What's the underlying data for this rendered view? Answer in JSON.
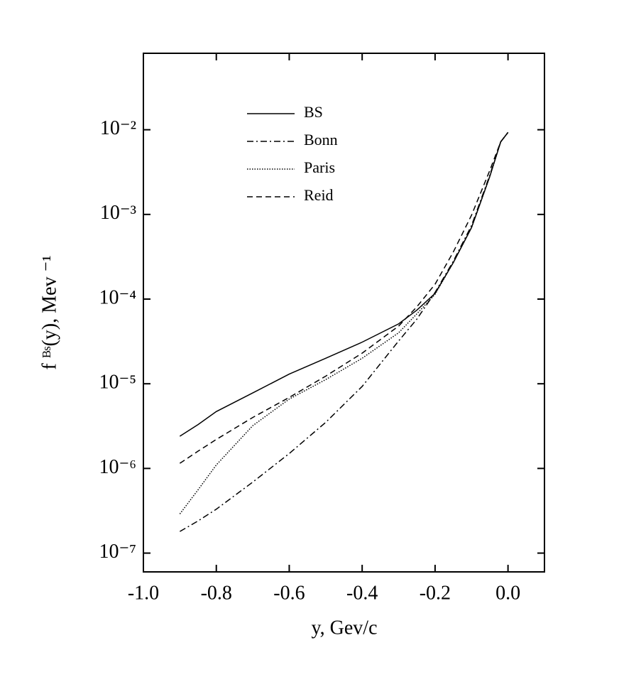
{
  "chart_data": {
    "type": "line",
    "x_label": "y, Gev/c",
    "y_label": "f ᴮˢ(y), Mev ⁻¹",
    "log_y": true,
    "legend": "upper left",
    "xlim": [
      -1.0,
      0.1
    ],
    "ylim": [
      6e-08,
      0.08
    ],
    "xticks": [
      {
        "value": -1.0,
        "label": "-1.0"
      },
      -0.8,
      -0.6,
      -0.4,
      -0.2,
      {
        "value": 0,
        "label": "0.0"
      }
    ],
    "yticks": [
      {
        "value": 1e-07,
        "label": "10⁻⁷"
      },
      {
        "value": 1e-06,
        "label": "10⁻⁶"
      },
      {
        "value": 1e-05,
        "label": "10⁻⁵"
      },
      {
        "value": 0.0001,
        "label": "10⁻⁴"
      },
      {
        "value": 0.001,
        "label": "10⁻³"
      },
      {
        "value": 0.01,
        "label": "10⁻²"
      }
    ],
    "x": [
      -0.9,
      -0.85,
      -0.8,
      -0.7,
      -0.6,
      -0.5,
      -0.4,
      -0.3,
      -0.25,
      -0.2,
      -0.15,
      -0.1,
      -0.05,
      -0.02,
      0
    ],
    "series": [
      {
        "name": "BS",
        "color": "#000000",
        "style": "solid",
        "values": [
          2.4e-06,
          3.3e-06,
          4.7e-06,
          7.8e-06,
          1.3e-05,
          2e-05,
          3.1e-05,
          5.1e-05,
          7.4e-05,
          0.000117,
          0.00027,
          0.0007,
          0.0028,
          0.0072,
          0.0093
        ]
      },
      {
        "name": "Bonn",
        "color": "#000000",
        "style": "dashdot",
        "values": [
          1.8e-07,
          2.4e-07,
          3.3e-07,
          6.9e-07,
          1.5e-06,
          3.5e-06,
          9.3e-06,
          3.2e-05,
          5.8e-05,
          0.00012,
          0.00028,
          0.00074,
          0.0029,
          0.0072,
          0.0093
        ]
      },
      {
        "name": "Paris",
        "color": "#000000",
        "style": "dotted",
        "values": [
          2.9e-07,
          5.6e-07,
          1.1e-06,
          3.2e-06,
          6.6e-06,
          1.12e-05,
          2e-05,
          4e-05,
          6.7e-05,
          0.000114,
          0.00027,
          0.0007,
          0.0028,
          0.0072,
          0.0093
        ]
      },
      {
        "name": "Reid",
        "color": "#000000",
        "style": "dashed",
        "values": [
          1.15e-06,
          1.6e-06,
          2.2e-06,
          4e-06,
          6.9e-06,
          1.23e-05,
          2.3e-05,
          4.8e-05,
          8.1e-05,
          0.00015,
          0.00036,
          0.00098,
          0.0033,
          0.0072,
          0.0093
        ]
      }
    ]
  }
}
